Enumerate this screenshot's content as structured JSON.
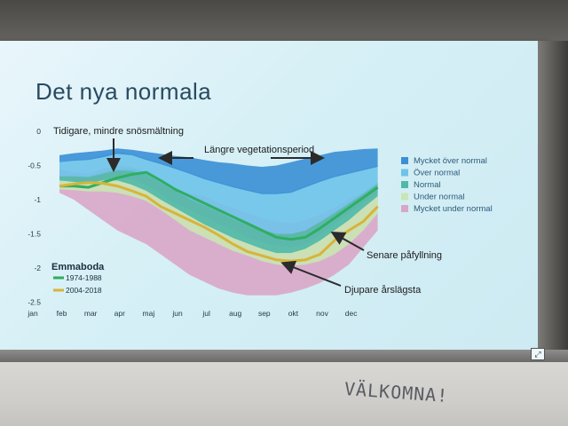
{
  "slide": {
    "title": "Det nya normala"
  },
  "whiteboard": {
    "text": "VÄLKOMNA!"
  },
  "chart_data": {
    "type": "area",
    "title": "",
    "xlabel": "",
    "ylabel": "",
    "station": "Emmaboda",
    "categories": [
      "jan",
      "feb",
      "mar",
      "apr",
      "maj",
      "jun",
      "jul",
      "aug",
      "sep",
      "okt",
      "nov",
      "dec"
    ],
    "y_ticks": [
      "0",
      "-0.5",
      "-1",
      "-1.5",
      "-2",
      "-2.5"
    ],
    "ylim": [
      -2.5,
      0
    ],
    "legend": [
      {
        "label": "Mycket över normal",
        "color": "#3a8fd6"
      },
      {
        "label": "Över normal",
        "color": "#6ec3ea"
      },
      {
        "label": "Normal",
        "color": "#4fb9a8"
      },
      {
        "label": "Under normal",
        "color": "#c9e6b3"
      },
      {
        "label": "Mycket under normal",
        "color": "#d9a6c8"
      }
    ],
    "series": [
      {
        "name": "1974-1988",
        "color": "#2fae62",
        "x": [
          1.0,
          1.5,
          2.0,
          2.5,
          3.0,
          3.5,
          4.0,
          4.5,
          5.0,
          5.5,
          6.0,
          6.5,
          7.0,
          7.5,
          8.0,
          8.5,
          9.0,
          9.5,
          10.0,
          10.5,
          11.0,
          11.5,
          12.0
        ],
        "values": [
          -0.8,
          -0.8,
          -0.82,
          -0.75,
          -0.68,
          -0.63,
          -0.6,
          -0.72,
          -0.85,
          -0.95,
          -1.05,
          -1.15,
          -1.25,
          -1.35,
          -1.45,
          -1.55,
          -1.58,
          -1.55,
          -1.42,
          -1.27,
          -1.12,
          -0.97,
          -0.82
        ]
      },
      {
        "name": "2004-2018",
        "color": "#d8b43a",
        "x": [
          1.0,
          1.5,
          2.0,
          2.5,
          3.0,
          3.5,
          4.0,
          4.5,
          5.0,
          5.5,
          6.0,
          6.5,
          7.0,
          7.5,
          8.0,
          8.5,
          9.0,
          9.5,
          10.0,
          10.5,
          11.0,
          11.5,
          12.0
        ],
        "values": [
          -0.8,
          -0.77,
          -0.75,
          -0.76,
          -0.8,
          -0.87,
          -0.95,
          -1.1,
          -1.2,
          -1.3,
          -1.4,
          -1.52,
          -1.65,
          -1.76,
          -1.82,
          -1.88,
          -1.9,
          -1.88,
          -1.8,
          -1.6,
          -1.45,
          -1.32,
          -1.1
        ]
      }
    ],
    "bands": [
      {
        "name": "Mycket under normal",
        "color": "#d9a6c8",
        "upper": [
          -0.55,
          -0.6,
          -0.62,
          -0.55,
          -0.5,
          -0.52,
          -0.6,
          -0.75,
          -0.85,
          -0.9,
          -0.95,
          -1.05,
          -1.12,
          -1.2,
          -1.27,
          -1.32,
          -1.35,
          -1.3,
          -1.22,
          -1.12,
          -1.0,
          -0.9,
          -0.75
        ],
        "lower": [
          -0.9,
          -1.0,
          -1.15,
          -1.3,
          -1.45,
          -1.55,
          -1.65,
          -1.8,
          -1.95,
          -2.1,
          -2.2,
          -2.3,
          -2.36,
          -2.4,
          -2.4,
          -2.4,
          -2.36,
          -2.3,
          -2.22,
          -2.1,
          -1.95,
          -1.7,
          -1.45
        ]
      },
      {
        "name": "Under normal",
        "color": "#c9e6b3",
        "upper": [
          -0.7,
          -0.72,
          -0.73,
          -0.7,
          -0.68,
          -0.7,
          -0.78,
          -0.92,
          -1.05,
          -1.15,
          -1.25,
          -1.35,
          -1.45,
          -1.55,
          -1.62,
          -1.68,
          -1.7,
          -1.65,
          -1.52,
          -1.35,
          -1.2,
          -1.05,
          -0.9
        ],
        "lower": [
          -0.85,
          -0.86,
          -0.88,
          -0.88,
          -0.9,
          -0.95,
          -1.02,
          -1.15,
          -1.3,
          -1.45,
          -1.55,
          -1.65,
          -1.75,
          -1.82,
          -1.9,
          -1.95,
          -1.97,
          -1.95,
          -1.9,
          -1.8,
          -1.65,
          -1.45,
          -1.2
        ]
      },
      {
        "name": "Normal",
        "color": "#4fb9a8",
        "upper": [
          -0.65,
          -0.65,
          -0.66,
          -0.6,
          -0.55,
          -0.55,
          -0.6,
          -0.72,
          -0.84,
          -0.96,
          -1.06,
          -1.16,
          -1.26,
          -1.35,
          -1.43,
          -1.5,
          -1.5,
          -1.45,
          -1.32,
          -1.18,
          -1.05,
          -0.9,
          -0.75
        ],
        "lower": [
          -0.72,
          -0.74,
          -0.76,
          -0.72,
          -0.72,
          -0.78,
          -0.87,
          -1.0,
          -1.12,
          -1.24,
          -1.36,
          -1.46,
          -1.56,
          -1.64,
          -1.72,
          -1.78,
          -1.78,
          -1.72,
          -1.6,
          -1.45,
          -1.3,
          -1.12,
          -0.95
        ]
      },
      {
        "name": "Över normal",
        "color": "#6ec3ea",
        "upper": [
          -0.45,
          -0.42,
          -0.4,
          -0.35,
          -0.3,
          -0.33,
          -0.4,
          -0.45,
          -0.52,
          -0.6,
          -0.68,
          -0.74,
          -0.8,
          -0.85,
          -0.9,
          -0.9,
          -0.88,
          -0.8,
          -0.72,
          -0.65,
          -0.6,
          -0.55,
          -0.5
        ],
        "lower": [
          -0.66,
          -0.66,
          -0.67,
          -0.62,
          -0.57,
          -0.58,
          -0.63,
          -0.75,
          -0.87,
          -0.99,
          -1.08,
          -1.18,
          -1.28,
          -1.37,
          -1.44,
          -1.5,
          -1.5,
          -1.45,
          -1.33,
          -1.2,
          -1.06,
          -0.92,
          -0.77
        ]
      },
      {
        "name": "Mycket över normal",
        "color": "#3a8fd6",
        "upper": [
          -0.35,
          -0.32,
          -0.3,
          -0.28,
          -0.25,
          -0.27,
          -0.3,
          -0.33,
          -0.36,
          -0.38,
          -0.42,
          -0.45,
          -0.47,
          -0.5,
          -0.52,
          -0.5,
          -0.45,
          -0.4,
          -0.35,
          -0.3,
          -0.28,
          -0.26,
          -0.25
        ],
        "lower": [
          -0.45,
          -0.43,
          -0.42,
          -0.38,
          -0.33,
          -0.35,
          -0.42,
          -0.48,
          -0.55,
          -0.62,
          -0.7,
          -0.76,
          -0.82,
          -0.87,
          -0.92,
          -0.92,
          -0.9,
          -0.82,
          -0.74,
          -0.67,
          -0.62,
          -0.57,
          -0.52
        ]
      }
    ],
    "annotations": [
      {
        "id": "early",
        "text": "Tidigare, mindre snösmältning"
      },
      {
        "id": "longer",
        "text": "Längre vegetationsperiod"
      },
      {
        "id": "later",
        "text": "Senare påfyllning"
      },
      {
        "id": "deeper",
        "text": "Djupare årslägsta"
      }
    ]
  }
}
